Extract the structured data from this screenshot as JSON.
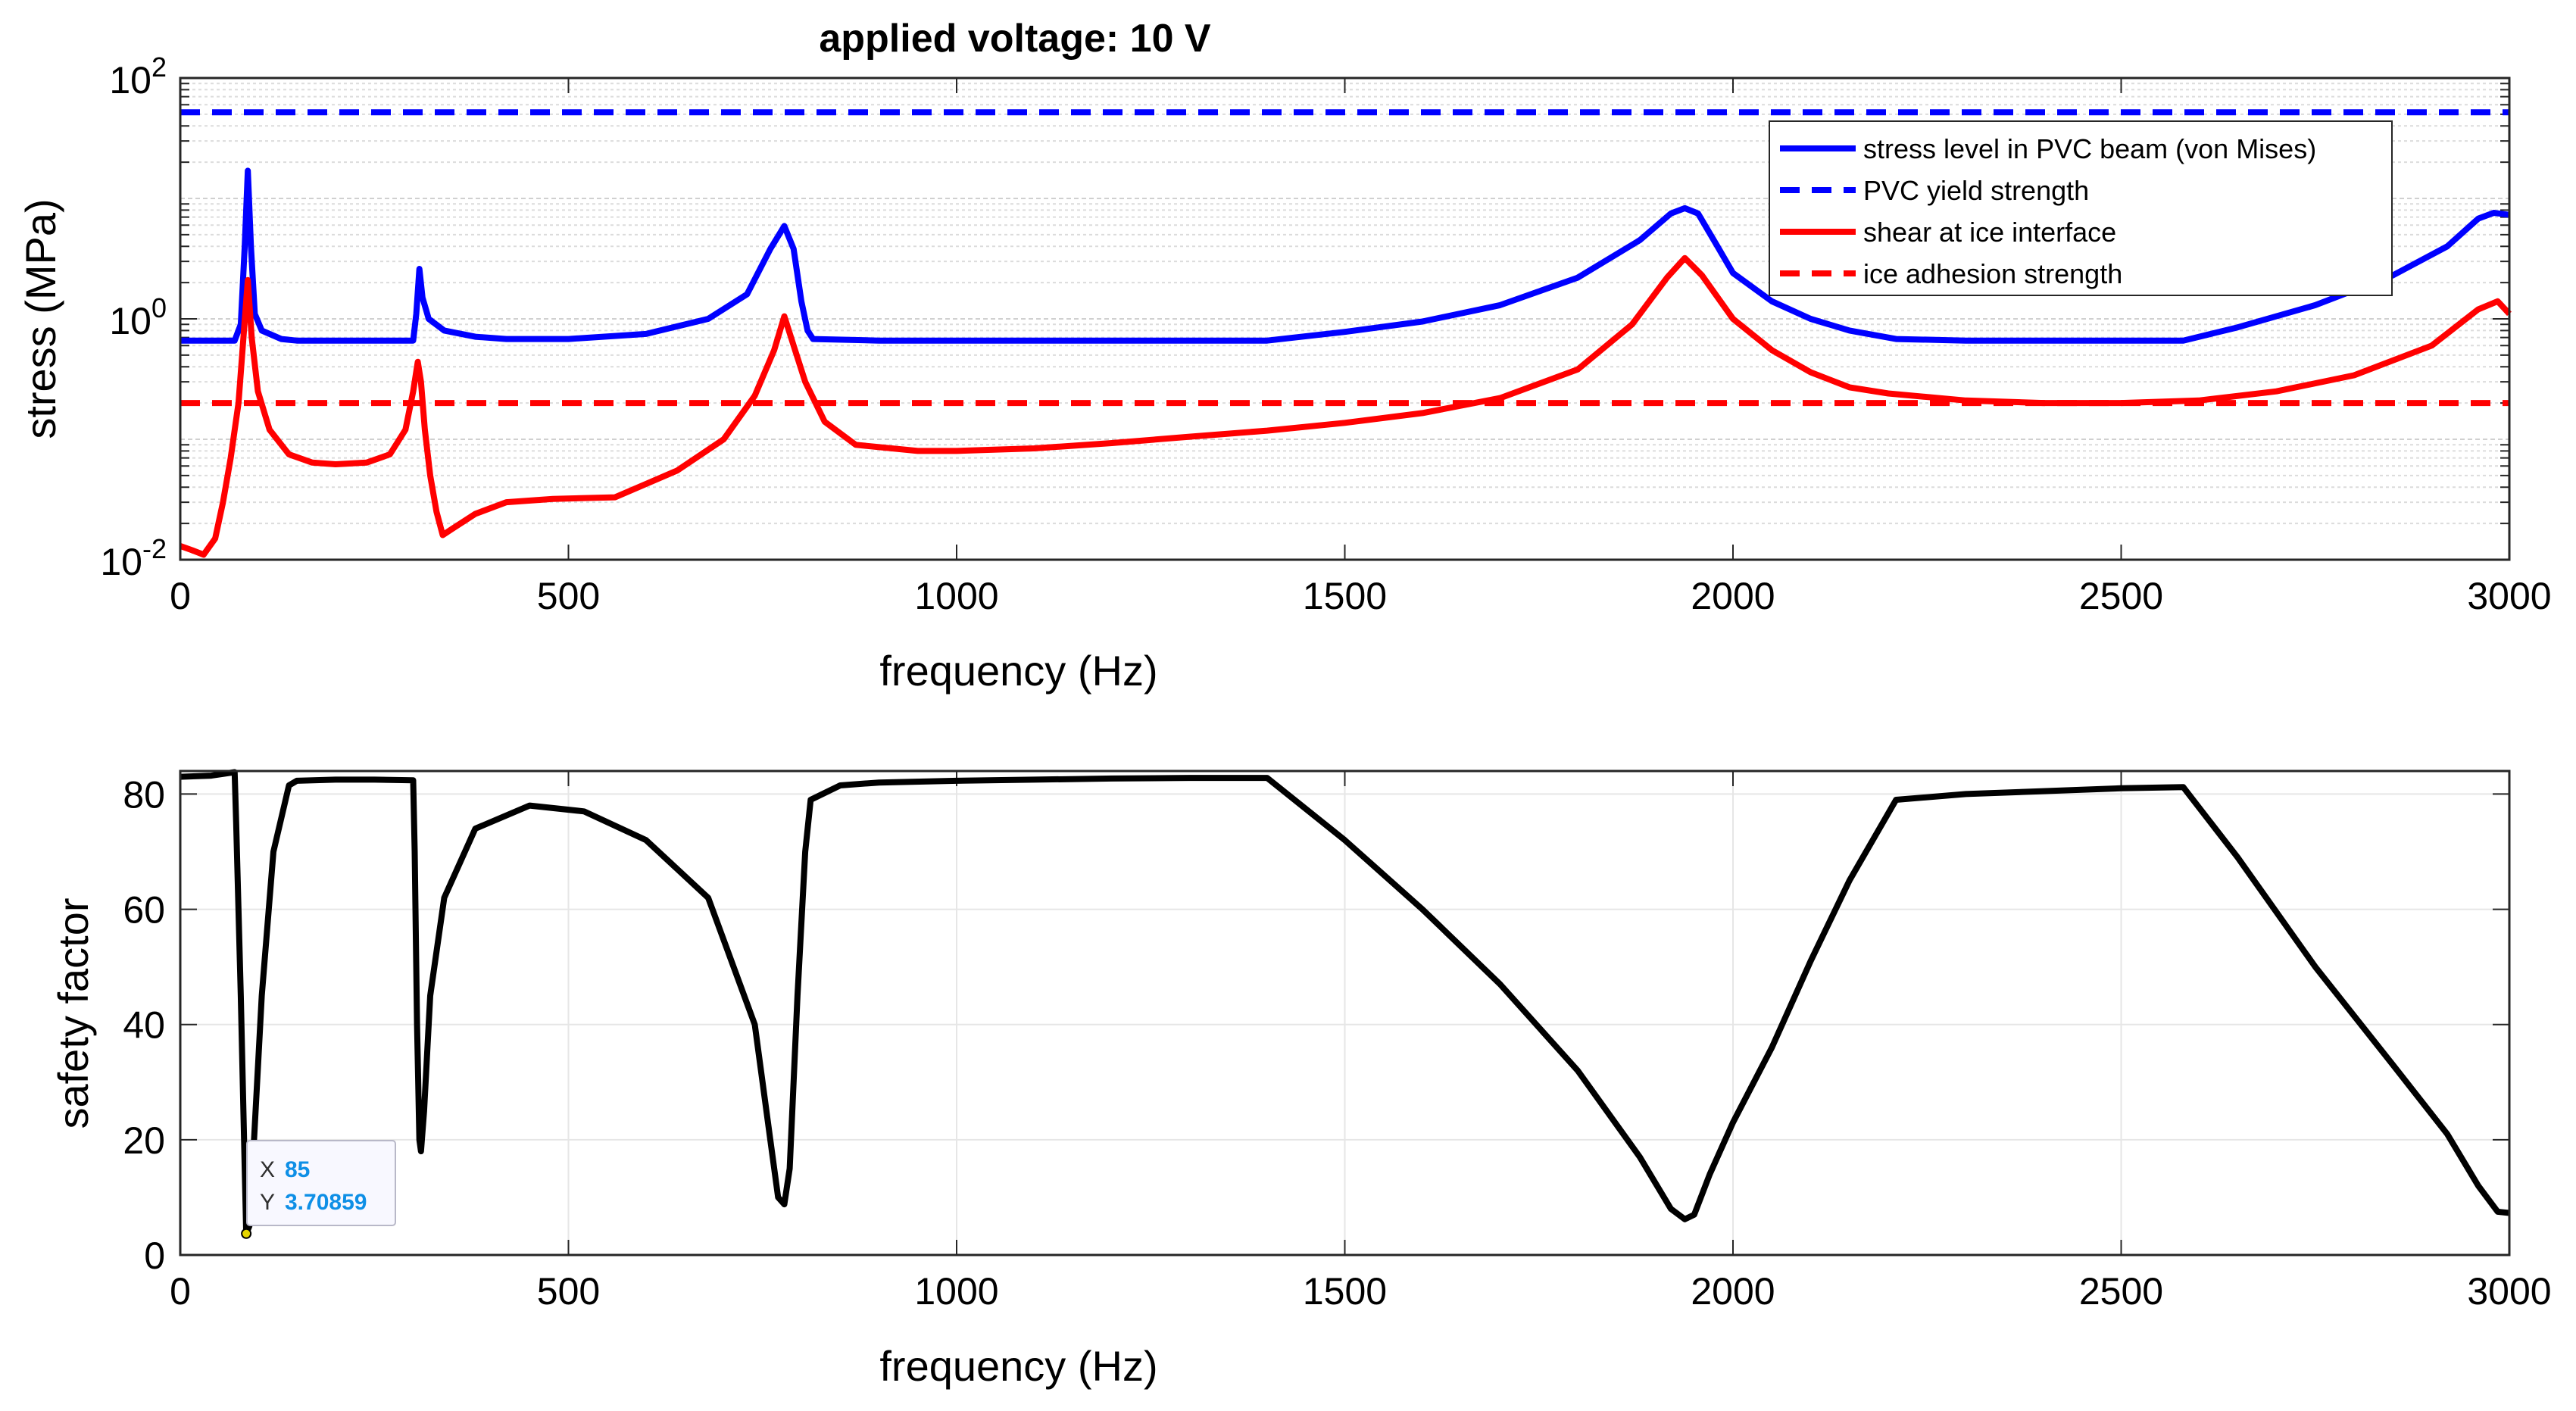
{
  "chart_data": [
    {
      "type": "line",
      "yscale": "log",
      "title": "applied voltage: 10 V",
      "xlabel": "frequency (Hz)",
      "ylabel": "stress (MPa)",
      "xlim": [
        0,
        3000
      ],
      "ylim": [
        0.01,
        100
      ],
      "xticks": [
        0,
        500,
        1000,
        1500,
        2000,
        2500,
        3000
      ],
      "xtick_labels": [
        "0",
        "500",
        "1000",
        "1500",
        "2000",
        "2500",
        "3000"
      ],
      "yticks": [
        {
          "value": 0.01,
          "base": "10",
          "exp": "-2"
        },
        {
          "value": 1,
          "base": "10",
          "exp": "0"
        },
        {
          "value": 100,
          "base": "10",
          "exp": "2"
        }
      ],
      "grid": true,
      "legend_position": "top-right",
      "series": [
        {
          "name": "stress level in PVC beam (von Mises)",
          "color": "#0000ff",
          "style": "solid",
          "points": [
            [
              0,
              0.66
            ],
            [
              70,
              0.66
            ],
            [
              78,
              0.9
            ],
            [
              83,
              4
            ],
            [
              87,
              17
            ],
            [
              91,
              4
            ],
            [
              96,
              1.1
            ],
            [
              105,
              0.8
            ],
            [
              130,
              0.68
            ],
            [
              150,
              0.66
            ],
            [
              250,
              0.66
            ],
            [
              300,
              0.66
            ],
            [
              304,
              1.1
            ],
            [
              308,
              2.6
            ],
            [
              312,
              1.5
            ],
            [
              320,
              1.0
            ],
            [
              340,
              0.8
            ],
            [
              380,
              0.71
            ],
            [
              420,
              0.68
            ],
            [
              500,
              0.68
            ],
            [
              600,
              0.75
            ],
            [
              680,
              1.0
            ],
            [
              730,
              1.6
            ],
            [
              760,
              3.8
            ],
            [
              778,
              5.9
            ],
            [
              790,
              3.8
            ],
            [
              800,
              1.4
            ],
            [
              808,
              0.8
            ],
            [
              815,
              0.68
            ],
            [
              900,
              0.66
            ],
            [
              1000,
              0.66
            ],
            [
              1200,
              0.66
            ],
            [
              1400,
              0.66
            ],
            [
              1500,
              0.78
            ],
            [
              1600,
              0.95
            ],
            [
              1700,
              1.3
            ],
            [
              1800,
              2.2
            ],
            [
              1880,
              4.5
            ],
            [
              1920,
              7.5
            ],
            [
              1938,
              8.3
            ],
            [
              1955,
              7.5
            ],
            [
              1980,
              4.0
            ],
            [
              2000,
              2.4
            ],
            [
              2050,
              1.4
            ],
            [
              2100,
              1.0
            ],
            [
              2150,
              0.8
            ],
            [
              2210,
              0.68
            ],
            [
              2300,
              0.66
            ],
            [
              2400,
              0.66
            ],
            [
              2500,
              0.66
            ],
            [
              2580,
              0.66
            ],
            [
              2650,
              0.85
            ],
            [
              2750,
              1.3
            ],
            [
              2850,
              2.3
            ],
            [
              2920,
              4.0
            ],
            [
              2960,
              6.8
            ],
            [
              2980,
              7.6
            ],
            [
              3000,
              7.3
            ]
          ]
        },
        {
          "name": "PVC yield strength",
          "color": "#0000ff",
          "style": "dashed",
          "points": [
            [
              0,
              52
            ],
            [
              3000,
              52
            ]
          ]
        },
        {
          "name": "shear at ice interface",
          "color": "#ff0000",
          "style": "solid",
          "points": [
            [
              0,
              0.013
            ],
            [
              15,
              0.012
            ],
            [
              30,
              0.011
            ],
            [
              45,
              0.015
            ],
            [
              55,
              0.03
            ],
            [
              65,
              0.07
            ],
            [
              75,
              0.2
            ],
            [
              82,
              0.8
            ],
            [
              87,
              2.1
            ],
            [
              92,
              0.7
            ],
            [
              100,
              0.25
            ],
            [
              115,
              0.12
            ],
            [
              140,
              0.075
            ],
            [
              170,
              0.064
            ],
            [
              200,
              0.062
            ],
            [
              240,
              0.064
            ],
            [
              270,
              0.075
            ],
            [
              290,
              0.12
            ],
            [
              300,
              0.25
            ],
            [
              306,
              0.44
            ],
            [
              310,
              0.3
            ],
            [
              315,
              0.12
            ],
            [
              322,
              0.05
            ],
            [
              330,
              0.025
            ],
            [
              338,
              0.016
            ],
            [
              350,
              0.018
            ],
            [
              380,
              0.024
            ],
            [
              420,
              0.03
            ],
            [
              480,
              0.032
            ],
            [
              560,
              0.033
            ],
            [
              640,
              0.055
            ],
            [
              700,
              0.1
            ],
            [
              740,
              0.23
            ],
            [
              765,
              0.55
            ],
            [
              778,
              1.05
            ],
            [
              790,
              0.6
            ],
            [
              805,
              0.3
            ],
            [
              830,
              0.14
            ],
            [
              870,
              0.09
            ],
            [
              950,
              0.08
            ],
            [
              1000,
              0.08
            ],
            [
              1100,
              0.084
            ],
            [
              1200,
              0.093
            ],
            [
              1300,
              0.105
            ],
            [
              1400,
              0.118
            ],
            [
              1500,
              0.137
            ],
            [
              1600,
              0.165
            ],
            [
              1700,
              0.22
            ],
            [
              1800,
              0.38
            ],
            [
              1870,
              0.9
            ],
            [
              1915,
              2.2
            ],
            [
              1938,
              3.2
            ],
            [
              1960,
              2.3
            ],
            [
              2000,
              1.0
            ],
            [
              2050,
              0.55
            ],
            [
              2100,
              0.36
            ],
            [
              2150,
              0.27
            ],
            [
              2200,
              0.24
            ],
            [
              2300,
              0.21
            ],
            [
              2400,
              0.2
            ],
            [
              2500,
              0.2
            ],
            [
              2600,
              0.21
            ],
            [
              2700,
              0.25
            ],
            [
              2800,
              0.34
            ],
            [
              2900,
              0.6
            ],
            [
              2960,
              1.2
            ],
            [
              2985,
              1.4
            ],
            [
              3000,
              1.1
            ]
          ]
        },
        {
          "name": "ice adhesion strength",
          "color": "#ff0000",
          "style": "dashed",
          "points": [
            [
              0,
              0.2
            ],
            [
              3000,
              0.2
            ]
          ]
        }
      ]
    },
    {
      "type": "line",
      "xlabel": "frequency (Hz)",
      "ylabel": "safety factor",
      "xlim": [
        0,
        3000
      ],
      "ylim": [
        0,
        84
      ],
      "xticks": [
        0,
        500,
        1000,
        1500,
        2000,
        2500,
        3000
      ],
      "xtick_labels": [
        "0",
        "500",
        "1000",
        "1500",
        "2000",
        "2500",
        "3000"
      ],
      "yticks": [
        0,
        20,
        40,
        60,
        80
      ],
      "ytick_labels": [
        "0",
        "20",
        "40",
        "60",
        "80"
      ],
      "grid": true,
      "series": [
        {
          "name": "safety factor",
          "color": "#000000",
          "style": "solid",
          "points": [
            [
              0,
              83
            ],
            [
              40,
              83.2
            ],
            [
              70,
              83.8
            ],
            [
              72,
              75
            ],
            [
              78,
              45
            ],
            [
              83,
              15
            ],
            [
              85,
              3.7
            ],
            [
              89,
              5
            ],
            [
              95,
              20
            ],
            [
              105,
              45
            ],
            [
              120,
              70
            ],
            [
              140,
              81.5
            ],
            [
              150,
              82.3
            ],
            [
              200,
              82.5
            ],
            [
              250,
              82.5
            ],
            [
              300,
              82.4
            ],
            [
              302,
              70
            ],
            [
              305,
              40
            ],
            [
              308,
              20
            ],
            [
              310,
              18
            ],
            [
              314,
              25
            ],
            [
              322,
              45
            ],
            [
              340,
              62
            ],
            [
              380,
              74
            ],
            [
              450,
              78
            ],
            [
              520,
              77
            ],
            [
              600,
              72
            ],
            [
              680,
              62
            ],
            [
              740,
              40
            ],
            [
              760,
              20
            ],
            [
              770,
              10
            ],
            [
              778,
              8.8
            ],
            [
              785,
              15
            ],
            [
              795,
              45
            ],
            [
              805,
              70
            ],
            [
              812,
              79
            ],
            [
              850,
              81.5
            ],
            [
              900,
              82
            ],
            [
              1000,
              82.3
            ],
            [
              1100,
              82.5
            ],
            [
              1200,
              82.7
            ],
            [
              1300,
              82.8
            ],
            [
              1400,
              82.8
            ],
            [
              1500,
              72
            ],
            [
              1600,
              60
            ],
            [
              1700,
              47
            ],
            [
              1800,
              32
            ],
            [
              1880,
              17
            ],
            [
              1920,
              8
            ],
            [
              1938,
              6.2
            ],
            [
              1950,
              7
            ],
            [
              1970,
              14
            ],
            [
              2000,
              23
            ],
            [
              2050,
              36
            ],
            [
              2100,
              51
            ],
            [
              2150,
              65
            ],
            [
              2210,
              79
            ],
            [
              2300,
              80
            ],
            [
              2400,
              80.5
            ],
            [
              2500,
              81
            ],
            [
              2580,
              81.2
            ],
            [
              2650,
              69
            ],
            [
              2750,
              50
            ],
            [
              2850,
              33
            ],
            [
              2920,
              21
            ],
            [
              2960,
              12
            ],
            [
              2985,
              7.5
            ],
            [
              3000,
              7.3
            ]
          ]
        }
      ],
      "datatip": {
        "x_label": "X",
        "x_value": "85",
        "y_label": "Y",
        "y_value": "3.70859",
        "x": 85,
        "y": 3.70859
      }
    }
  ]
}
